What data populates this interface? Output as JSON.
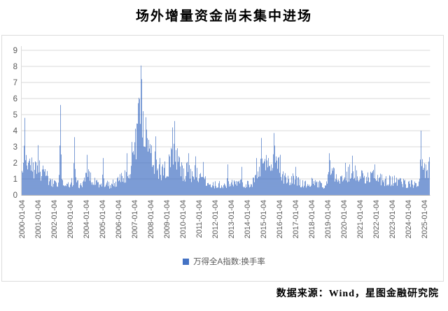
{
  "title": "场外增量资金尚未集中进场",
  "footer": "数据来源：Wind，星图金融研究院",
  "legend": {
    "label": "万得全A指数:换手率",
    "marker_color": "#4472C4"
  },
  "colors": {
    "bar": "#4472C4",
    "gridline": "#dadada",
    "axis_line": "#b7b7b7",
    "axis_text": "#595959",
    "frame_border": "#dcdcdc"
  },
  "chart_data": {
    "type": "bar",
    "title": "场外增量资金尚未集中进场",
    "series_name": "万得全A指数:换手率",
    "xlabel": "",
    "ylabel": "",
    "ylim": [
      0,
      9
    ],
    "yticks": [
      0,
      1,
      2,
      3,
      4,
      5,
      6,
      7,
      8,
      9
    ],
    "grid": "horizontal",
    "legend_position": "bottom",
    "bar_color": "#4472C4",
    "x_tick_labels": [
      "2000-01-04",
      "2001-01-04",
      "2002-01-04",
      "2003-01-04",
      "2004-01-04",
      "2005-01-04",
      "2006-01-04",
      "2007-01-04",
      "2008-01-04",
      "2009-01-04",
      "2010-01-04",
      "2011-01-04",
      "2012-01-04",
      "2013-01-04",
      "2014-01-04",
      "2015-01-04",
      "2016-01-04",
      "2017-01-04",
      "2018-01-04",
      "2019-01-04",
      "2020-01-04",
      "2021-01-04",
      "2022-01-04",
      "2023-01-04",
      "2024-01-04",
      "2025-01-04"
    ],
    "x_start_year": 2000,
    "x_end_offset_years": 25.35,
    "envelope_years_since_2000_vs_turnover": [
      [
        0,
        2.8
      ],
      [
        0.1,
        3.3
      ],
      [
        0.18,
        3.8
      ],
      [
        0.3,
        3.2
      ],
      [
        0.5,
        2.9
      ],
      [
        0.7,
        2.3
      ],
      [
        0.9,
        2.2
      ],
      [
        1.0,
        2.6
      ],
      [
        1.2,
        1.9
      ],
      [
        1.45,
        2.1
      ],
      [
        1.7,
        1.2
      ],
      [
        1.95,
        1.0
      ],
      [
        2.2,
        0.95
      ],
      [
        2.42,
        1.5
      ],
      [
        2.6,
        0.85
      ],
      [
        2.9,
        1.0
      ],
      [
        3.1,
        1.1
      ],
      [
        3.3,
        1.3
      ],
      [
        3.6,
        0.85
      ],
      [
        3.9,
        1.2
      ],
      [
        4.1,
        1.7
      ],
      [
        4.4,
        1.3
      ],
      [
        4.7,
        0.95
      ],
      [
        5.0,
        1.15
      ],
      [
        5.4,
        0.85
      ],
      [
        5.75,
        1.05
      ],
      [
        6.0,
        1.25
      ],
      [
        6.4,
        1.6
      ],
      [
        6.7,
        2.2
      ],
      [
        6.95,
        3.0
      ],
      [
        7.1,
        4.8
      ],
      [
        7.25,
        6.6
      ],
      [
        7.42,
        7.9
      ],
      [
        7.6,
        6.0
      ],
      [
        7.8,
        4.4
      ],
      [
        7.95,
        3.4
      ],
      [
        8.15,
        3.1
      ],
      [
        8.35,
        2.7
      ],
      [
        8.6,
        1.8
      ],
      [
        8.8,
        2.0
      ],
      [
        9.0,
        2.2
      ],
      [
        9.25,
        3.0
      ],
      [
        9.5,
        4.1
      ],
      [
        9.65,
        3.2
      ],
      [
        9.85,
        2.4
      ],
      [
        10.1,
        1.7
      ],
      [
        10.35,
        2.4
      ],
      [
        10.6,
        1.5
      ],
      [
        10.8,
        2.1
      ],
      [
        11.05,
        1.5
      ],
      [
        11.3,
        1.3
      ],
      [
        11.6,
        1.0
      ],
      [
        11.95,
        0.85
      ],
      [
        12.25,
        1.0
      ],
      [
        12.55,
        0.7
      ],
      [
        12.8,
        1.1
      ],
      [
        13.05,
        1.1
      ],
      [
        13.35,
        0.9
      ],
      [
        13.65,
        1.1
      ],
      [
        13.95,
        0.9
      ],
      [
        14.2,
        1.0
      ],
      [
        14.45,
        1.2
      ],
      [
        14.7,
        1.5
      ],
      [
        14.87,
        2.6
      ],
      [
        15.0,
        2.3
      ],
      [
        15.2,
        2.5
      ],
      [
        15.45,
        3.1
      ],
      [
        15.65,
        3.7
      ],
      [
        15.85,
        3.0
      ],
      [
        16.0,
        2.3
      ],
      [
        16.2,
        1.7
      ],
      [
        16.5,
        1.2
      ],
      [
        16.8,
        1.4
      ],
      [
        17.0,
        1.5
      ],
      [
        17.2,
        1.1
      ],
      [
        17.5,
        0.9
      ],
      [
        17.8,
        1.05
      ],
      [
        18.1,
        1.1
      ],
      [
        18.45,
        0.95
      ],
      [
        18.75,
        0.85
      ],
      [
        19.0,
        1.4
      ],
      [
        19.15,
        2.4
      ],
      [
        19.35,
        1.8
      ],
      [
        19.6,
        1.3
      ],
      [
        19.85,
        1.3
      ],
      [
        20.1,
        1.6
      ],
      [
        20.3,
        1.8
      ],
      [
        20.55,
        2.2
      ],
      [
        20.75,
        1.9
      ],
      [
        20.95,
        1.6
      ],
      [
        21.2,
        1.5
      ],
      [
        21.5,
        1.4
      ],
      [
        21.75,
        1.65
      ],
      [
        21.95,
        1.7
      ],
      [
        22.2,
        1.4
      ],
      [
        22.5,
        1.2
      ],
      [
        22.75,
        1.3
      ],
      [
        22.95,
        1.15
      ],
      [
        23.2,
        1.25
      ],
      [
        23.5,
        1.1
      ],
      [
        23.75,
        1.0
      ],
      [
        23.95,
        0.95
      ],
      [
        24.2,
        1.0
      ],
      [
        24.45,
        0.9
      ],
      [
        24.65,
        0.9
      ],
      [
        24.72,
        1.1
      ],
      [
        24.79,
        3.95
      ],
      [
        24.9,
        2.7
      ],
      [
        25.0,
        2.1
      ],
      [
        25.1,
        1.9
      ],
      [
        25.2,
        2.2
      ],
      [
        25.35,
        2.3
      ]
    ],
    "spike_points_years_since_2000_vs_turnover": [
      [
        0.18,
        4.8
      ],
      [
        1.02,
        3.1
      ],
      [
        2.42,
        5.6
      ],
      [
        3.28,
        3.6
      ],
      [
        4.08,
        2.5
      ],
      [
        5.05,
        2.3
      ],
      [
        6.55,
        2.6
      ],
      [
        6.85,
        3.3
      ],
      [
        7.42,
        8.05
      ],
      [
        8.3,
        3.65
      ],
      [
        8.6,
        2.3
      ],
      [
        9.35,
        4.2
      ],
      [
        9.5,
        4.6
      ],
      [
        10.35,
        2.6
      ],
      [
        10.78,
        2.4
      ],
      [
        11.26,
        2.05
      ],
      [
        12.8,
        1.9
      ],
      [
        13.65,
        1.75
      ],
      [
        14.6,
        2.3
      ],
      [
        14.87,
        3.55
      ],
      [
        15.65,
        3.85
      ],
      [
        16.05,
        2.5
      ],
      [
        17.0,
        1.75
      ],
      [
        19.12,
        2.6
      ],
      [
        20.1,
        2.0
      ],
      [
        20.55,
        2.45
      ],
      [
        21.95,
        1.9
      ],
      [
        24.79,
        4.0
      ],
      [
        25.3,
        2.35
      ]
    ]
  }
}
